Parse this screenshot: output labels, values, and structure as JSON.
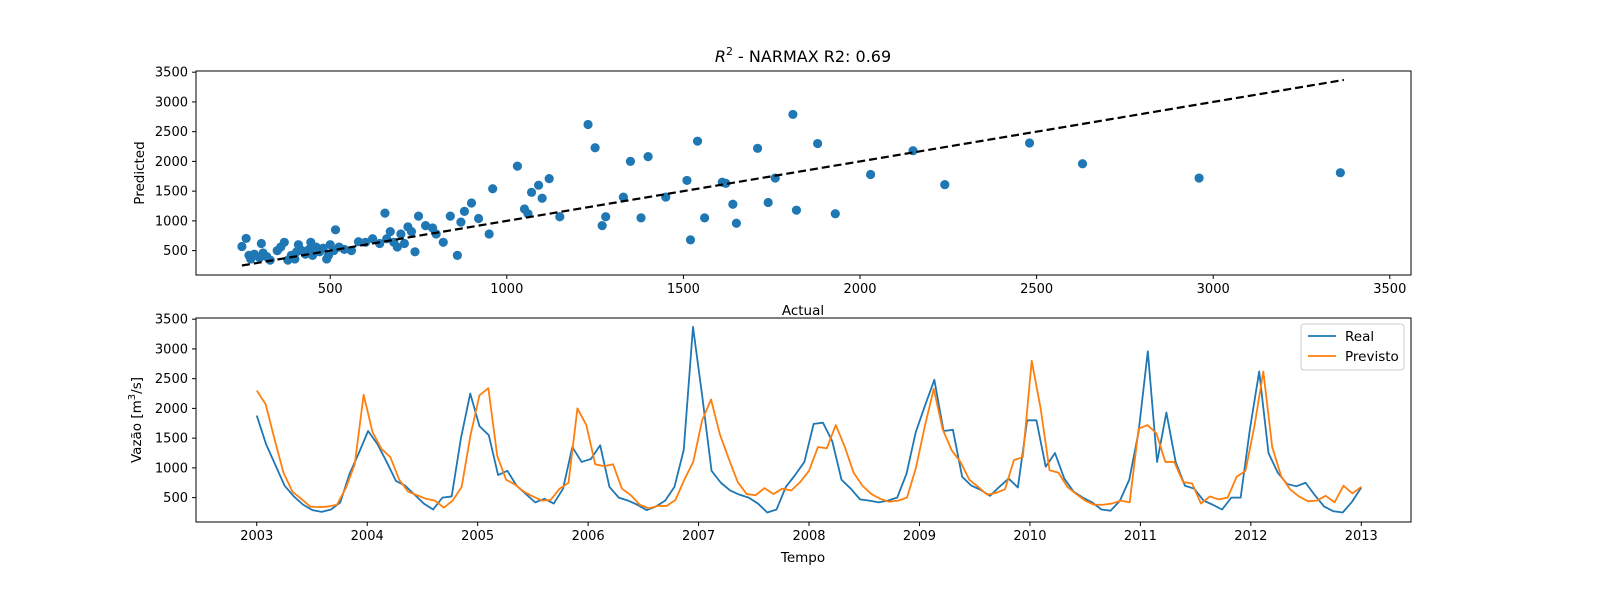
{
  "chart_data": [
    {
      "type": "scatter",
      "title_prefix": "R",
      "title_sup": "2",
      "title_suffix": " - NARMAX R2: 0.69",
      "xlabel": "Actual",
      "ylabel": "Predicted",
      "xlim": [
        120,
        3560
      ],
      "ylim": [
        90,
        3520
      ],
      "xticks": [
        500,
        1000,
        1500,
        2000,
        2500,
        3000,
        3500
      ],
      "yticks": [
        500,
        1000,
        1500,
        2000,
        2500,
        3000,
        3500
      ],
      "point_color": "#1f77b4",
      "line_color": "#000000",
      "reference_line": {
        "x": [
          250,
          3370
        ],
        "y": [
          250,
          3370
        ],
        "style": "dashed"
      },
      "points": [
        [
          250,
          570
        ],
        [
          262,
          705
        ],
        [
          270,
          420
        ],
        [
          275,
          360
        ],
        [
          285,
          440
        ],
        [
          300,
          380
        ],
        [
          305,
          620
        ],
        [
          310,
          460
        ],
        [
          320,
          400
        ],
        [
          330,
          340
        ],
        [
          350,
          500
        ],
        [
          360,
          560
        ],
        [
          370,
          640
        ],
        [
          380,
          340
        ],
        [
          390,
          420
        ],
        [
          400,
          360
        ],
        [
          405,
          480
        ],
        [
          410,
          600
        ],
        [
          420,
          500
        ],
        [
          430,
          440
        ],
        [
          440,
          520
        ],
        [
          445,
          640
        ],
        [
          450,
          420
        ],
        [
          460,
          560
        ],
        [
          470,
          480
        ],
        [
          480,
          540
        ],
        [
          490,
          360
        ],
        [
          495,
          420
        ],
        [
          500,
          600
        ],
        [
          510,
          500
        ],
        [
          515,
          850
        ],
        [
          525,
          560
        ],
        [
          540,
          520
        ],
        [
          560,
          500
        ],
        [
          580,
          650
        ],
        [
          600,
          640
        ],
        [
          620,
          700
        ],
        [
          640,
          620
        ],
        [
          655,
          1130
        ],
        [
          660,
          700
        ],
        [
          670,
          820
        ],
        [
          680,
          640
        ],
        [
          690,
          560
        ],
        [
          700,
          780
        ],
        [
          710,
          620
        ],
        [
          720,
          900
        ],
        [
          730,
          820
        ],
        [
          740,
          480
        ],
        [
          750,
          1080
        ],
        [
          770,
          920
        ],
        [
          790,
          880
        ],
        [
          800,
          780
        ],
        [
          820,
          640
        ],
        [
          840,
          1080
        ],
        [
          860,
          420
        ],
        [
          870,
          980
        ],
        [
          880,
          1160
        ],
        [
          900,
          1300
        ],
        [
          920,
          1040
        ],
        [
          950,
          780
        ],
        [
          960,
          1540
        ],
        [
          1030,
          1920
        ],
        [
          1050,
          1200
        ],
        [
          1060,
          1120
        ],
        [
          1070,
          1480
        ],
        [
          1090,
          1600
        ],
        [
          1100,
          1380
        ],
        [
          1120,
          1710
        ],
        [
          1150,
          1070
        ],
        [
          1230,
          2620
        ],
        [
          1250,
          2230
        ],
        [
          1270,
          920
        ],
        [
          1280,
          1070
        ],
        [
          1330,
          1400
        ],
        [
          1350,
          2000
        ],
        [
          1380,
          1050
        ],
        [
          1400,
          2080
        ],
        [
          1450,
          1400
        ],
        [
          1510,
          1680
        ],
        [
          1520,
          680
        ],
        [
          1540,
          2340
        ],
        [
          1560,
          1050
        ],
        [
          1610,
          1650
        ],
        [
          1620,
          1630
        ],
        [
          1640,
          1280
        ],
        [
          1650,
          960
        ],
        [
          1710,
          2220
        ],
        [
          1740,
          1310
        ],
        [
          1760,
          1720
        ],
        [
          1810,
          2790
        ],
        [
          1820,
          1180
        ],
        [
          1880,
          2300
        ],
        [
          1930,
          1120
        ],
        [
          2030,
          1780
        ],
        [
          2150,
          2180
        ],
        [
          2240,
          1610
        ],
        [
          2480,
          2310
        ],
        [
          2630,
          1960
        ],
        [
          2960,
          1720
        ],
        [
          3360,
          1810
        ]
      ]
    },
    {
      "type": "line",
      "xlabel": "Tempo",
      "ylabel_prefix": "Vazão [m",
      "ylabel_sup": "3",
      "ylabel_suffix": "/s]",
      "xlim": [
        2002.45,
        2013.45
      ],
      "ylim": [
        90,
        3520
      ],
      "xticks": [
        2003,
        2004,
        2005,
        2006,
        2007,
        2008,
        2009,
        2010,
        2011,
        2012,
        2013
      ],
      "yticks": [
        500,
        1000,
        1500,
        2000,
        2500,
        3000,
        3500
      ],
      "legend_position": "upper-right",
      "series": [
        {
          "name": "Real",
          "color": "#1f77b4",
          "values": [
            1880,
            1400,
            1050,
            700,
            520,
            380,
            290,
            260,
            300,
            420,
            900,
            1250,
            1620,
            1400,
            1100,
            780,
            700,
            550,
            400,
            300,
            500,
            520,
            1500,
            2250,
            1700,
            1550,
            880,
            950,
            700,
            560,
            420,
            480,
            400,
            650,
            1350,
            1100,
            1150,
            1380,
            680,
            500,
            450,
            380,
            290,
            350,
            450,
            680,
            1300,
            3370,
            2200,
            950,
            750,
            620,
            550,
            500,
            400,
            250,
            300,
            680,
            880,
            1100,
            1740,
            1760,
            1450,
            800,
            650,
            470,
            450,
            420,
            450,
            500,
            900,
            1600,
            2050,
            2480,
            1620,
            1640,
            850,
            700,
            630,
            530,
            680,
            820,
            670,
            1800,
            1800,
            1020,
            1250,
            820,
            600,
            500,
            420,
            300,
            280,
            450,
            800,
            1600,
            2960,
            1100,
            1930,
            1100,
            700,
            650,
            450,
            380,
            300,
            500,
            500,
            1650,
            2620,
            1250,
            920,
            730,
            690,
            750,
            540,
            350,
            270,
            250,
            430,
            670
          ]
        },
        {
          "name": "Previsto",
          "color": "#ff7f0e",
          "values": [
            2300,
            2070,
            1480,
            920,
            600,
            480,
            350,
            340,
            350,
            380,
            660,
            1060,
            2230,
            1600,
            1320,
            1180,
            800,
            600,
            540,
            480,
            450,
            330,
            450,
            680,
            1550,
            2220,
            2340,
            1200,
            800,
            720,
            600,
            520,
            450,
            460,
            650,
            750,
            2000,
            1720,
            1060,
            1030,
            1060,
            650,
            540,
            380,
            320,
            360,
            360,
            460,
            800,
            1100,
            1800,
            2150,
            1560,
            1150,
            760,
            560,
            540,
            660,
            560,
            650,
            620,
            760,
            950,
            1350,
            1330,
            1720,
            1360,
            920,
            700,
            560,
            480,
            430,
            450,
            500,
            1000,
            1700,
            2330,
            1650,
            1300,
            1100,
            800,
            680,
            550,
            580,
            640,
            1130,
            1180,
            2800,
            2000,
            960,
            920,
            680,
            560,
            450,
            380,
            380,
            400,
            450,
            420,
            1660,
            1720,
            1580,
            1100,
            1100,
            760,
            740,
            400,
            520,
            470,
            500,
            850,
            950,
            1700,
            2620,
            1350,
            860,
            640,
            520,
            440,
            450,
            530,
            420,
            700,
            570,
            680
          ]
        }
      ]
    }
  ]
}
